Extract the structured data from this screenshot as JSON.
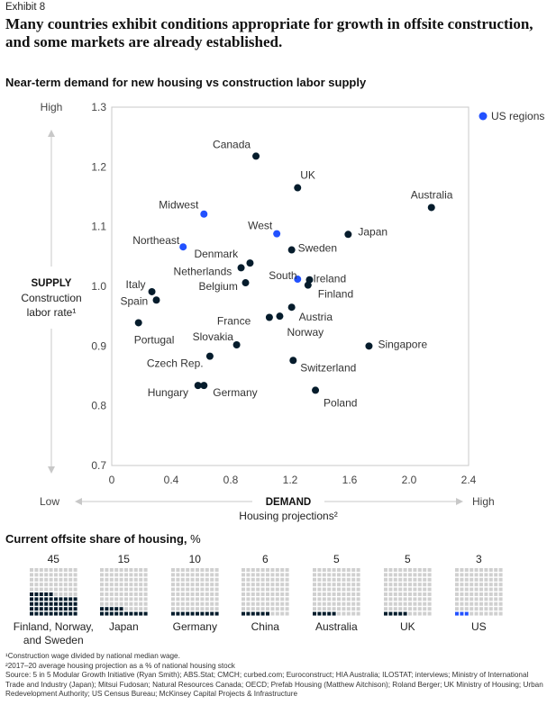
{
  "exhibit_label": "Exhibit 8",
  "headline": "Many countries exhibit conditions appropriate for growth in offsite construction, and some markets are already established.",
  "colors": {
    "country": "#051c2c",
    "us_region": "#2251ff",
    "axis": "#c8c8c8",
    "empty_cell": "#d0d0d0"
  },
  "chart_data": [
    {
      "type": "scatter",
      "title": "Near-term demand for new housing vs construction labor supply",
      "xlabel": "DEMAND",
      "xlabel_sub": "Housing projections²",
      "ylabel": "SUPPLY",
      "ylabel_sub1": "Construction",
      "ylabel_sub2": "labor rate¹",
      "y_high_label": "High",
      "x_low_label": "Low",
      "x_high_label": "High",
      "xlim": [
        0,
        2.4
      ],
      "ylim": [
        0.7,
        1.3
      ],
      "x_ticks": [
        "0",
        "0.4",
        "0.8",
        "1.2",
        "1.6",
        "2.0",
        "2.4"
      ],
      "y_ticks": [
        "0.7",
        "0.8",
        "0.9",
        "1.0",
        "1.1",
        "1.2",
        "1.3"
      ],
      "legend": {
        "label": "US regions",
        "position": "top-right"
      },
      "grid": false,
      "points": [
        {
          "label": "Canada",
          "x": 0.97,
          "y": 1.218,
          "group": "country"
        },
        {
          "label": "UK",
          "x": 1.25,
          "y": 1.165,
          "group": "country"
        },
        {
          "label": "Australia",
          "x": 2.15,
          "y": 1.132,
          "group": "country"
        },
        {
          "label": "Midwest",
          "x": 0.62,
          "y": 1.121,
          "group": "us"
        },
        {
          "label": "West",
          "x": 1.11,
          "y": 1.088,
          "group": "us"
        },
        {
          "label": "Japan",
          "x": 1.59,
          "y": 1.087,
          "group": "country"
        },
        {
          "label": "Northeast",
          "x": 0.48,
          "y": 1.066,
          "group": "us"
        },
        {
          "label": "Sweden",
          "x": 1.21,
          "y": 1.061,
          "group": "country"
        },
        {
          "label": "Denmark",
          "x": 0.93,
          "y": 1.039,
          "group": "country"
        },
        {
          "label": "Netherlands",
          "x": 0.87,
          "y": 1.031,
          "group": "country"
        },
        {
          "label": "South",
          "x": 1.25,
          "y": 1.012,
          "group": "us"
        },
        {
          "label": "Ireland",
          "x": 1.33,
          "y": 1.011,
          "group": "country"
        },
        {
          "label": "Belgium",
          "x": 0.9,
          "y": 1.006,
          "group": "country"
        },
        {
          "label": "Finland",
          "x": 1.32,
          "y": 1.002,
          "group": "country"
        },
        {
          "label": "Italy",
          "x": 0.27,
          "y": 0.991,
          "group": "country"
        },
        {
          "label": "Spain",
          "x": 0.3,
          "y": 0.977,
          "group": "country"
        },
        {
          "label": "Austria",
          "x": 1.21,
          "y": 0.965,
          "group": "country"
        },
        {
          "label": "France",
          "x": 1.06,
          "y": 0.948,
          "group": "country"
        },
        {
          "label": "Norway",
          "x": 1.13,
          "y": 0.95,
          "group": "country"
        },
        {
          "label": "Portugal",
          "x": 0.18,
          "y": 0.939,
          "group": "country"
        },
        {
          "label": "Slovakia",
          "x": 0.84,
          "y": 0.902,
          "group": "country"
        },
        {
          "label": "Singapore",
          "x": 1.73,
          "y": 0.9,
          "group": "country"
        },
        {
          "label": "Czech Rep.",
          "x": 0.66,
          "y": 0.883,
          "group": "country"
        },
        {
          "label": "Switzerland",
          "x": 1.22,
          "y": 0.876,
          "group": "country"
        },
        {
          "label": "Hungary",
          "x": 0.58,
          "y": 0.834,
          "group": "country"
        },
        {
          "label": "Germany",
          "x": 0.62,
          "y": 0.834,
          "group": "country"
        },
        {
          "label": "Poland",
          "x": 1.37,
          "y": 0.826,
          "group": "country"
        }
      ]
    },
    {
      "type": "waffle",
      "title": "Current offsite share of housing,",
      "unit": "%",
      "items": [
        {
          "label": "Finland, Norway, and Sweden",
          "value": 45,
          "value_label": "45",
          "highlight": false
        },
        {
          "label": "Japan",
          "value": 15,
          "value_label": "15",
          "highlight": false
        },
        {
          "label": "Germany",
          "value": 10,
          "value_label": "10",
          "highlight": false
        },
        {
          "label": "China",
          "value": 6,
          "value_label": "6",
          "highlight": false
        },
        {
          "label": "Australia",
          "value": 5,
          "value_label": "5",
          "highlight": false
        },
        {
          "label": "UK",
          "value": 5,
          "value_label": "5",
          "highlight": false
        },
        {
          "label": "US",
          "value": 3,
          "value_label": "3",
          "highlight": true
        }
      ]
    }
  ],
  "footnotes": [
    "¹Construction wage divided by national median wage.",
    "²2017–20 average housing projection as a % of national housing stock",
    "Source: 5 in 5 Modular Growth Initiative (Ryan Smith); ABS.Stat; CMCH; curbed.com; Euroconstruct; HIA Australia; ILOSTAT; interviews; Ministry of International Trade and Industry (Japan); Mitsui Fudosan; Natural Resources Canada; OECD; Prefab Housing (Matthew Aitchison); Roland Berger; UK Ministry of Housing; Urban Redevelopment Authority; US Census Bureau; McKinsey Capital Projects & Infrastructure"
  ]
}
